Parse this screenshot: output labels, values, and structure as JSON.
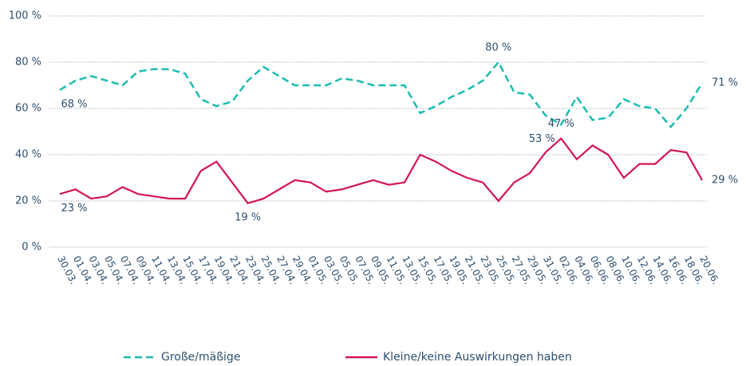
{
  "chart_data": {
    "type": "line",
    "categories": [
      "30.03.",
      "01.04.",
      "03.04.",
      "05.04.",
      "07.04.",
      "09.04.",
      "11.04.",
      "13.04.",
      "15.04.",
      "17.04.",
      "19.04.",
      "21.04.",
      "23.04.",
      "25.04.",
      "27.04.",
      "29.04.",
      "01.05.",
      "03.05.",
      "05.05.",
      "07.05.",
      "09.05.",
      "11.05.",
      "13.05.",
      "15.05.",
      "17.05.",
      "19.05.",
      "21.05.",
      "23.05.",
      "25.05.",
      "27.05.",
      "29.05.",
      "31.05.",
      "02.06.",
      "04.06.",
      "06.06.",
      "08.06.",
      "10.06.",
      "12.06.",
      "14.06.",
      "16.06.",
      "18.06.",
      "20.06."
    ],
    "series": [
      {
        "name": "Große/mäßige",
        "color": "#1bbcb0",
        "dash": true,
        "values": [
          68,
          72,
          74,
          72,
          70,
          76,
          77,
          77,
          75,
          64,
          61,
          63,
          72,
          78,
          74,
          70,
          70,
          70,
          73,
          72,
          70,
          70,
          70,
          58,
          61,
          65,
          68,
          72,
          80,
          67,
          66,
          57,
          53,
          65,
          55,
          56,
          64,
          61,
          60,
          52,
          60,
          71
        ],
        "value_labels": [
          "68 %",
          null,
          null,
          null,
          null,
          null,
          null,
          null,
          null,
          null,
          null,
          null,
          null,
          null,
          null,
          null,
          null,
          null,
          null,
          null,
          null,
          null,
          null,
          null,
          null,
          null,
          null,
          null,
          "80 %",
          null,
          null,
          null,
          "53 %",
          null,
          null,
          null,
          null,
          null,
          null,
          null,
          null,
          "71 %"
        ]
      },
      {
        "name": "Kleine/keine Auswirkungen haben",
        "color": "#d4145a",
        "dash": false,
        "values": [
          23,
          25,
          21,
          22,
          26,
          23,
          22,
          21,
          21,
          33,
          37,
          28,
          19,
          21,
          25,
          29,
          28,
          24,
          25,
          27,
          29,
          27,
          28,
          40,
          37,
          33,
          30,
          28,
          20,
          28,
          32,
          41,
          47,
          38,
          44,
          40,
          30,
          36,
          36,
          42,
          41,
          29
        ],
        "value_labels": [
          "23 %",
          null,
          null,
          null,
          null,
          null,
          null,
          null,
          null,
          null,
          null,
          null,
          "19 %",
          null,
          null,
          null,
          null,
          null,
          null,
          null,
          null,
          null,
          null,
          null,
          null,
          null,
          null,
          null,
          null,
          null,
          null,
          null,
          "47 %",
          null,
          null,
          null,
          null,
          null,
          null,
          null,
          null,
          "29 %"
        ]
      }
    ],
    "ylim": [
      0,
      100
    ],
    "yticks": [
      {
        "value": 0,
        "label": "0 %"
      },
      {
        "value": 20,
        "label": "20 %"
      },
      {
        "value": 40,
        "label": "40 %"
      },
      {
        "value": 60,
        "label": "60 %"
      },
      {
        "value": 80,
        "label": "80 %"
      },
      {
        "value": 100,
        "label": "100 %"
      }
    ],
    "grid": true
  }
}
